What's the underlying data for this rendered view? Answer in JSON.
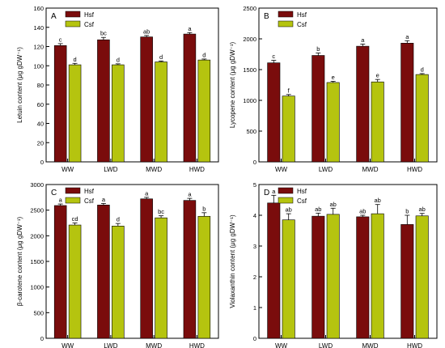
{
  "chart_data": [
    {
      "type": "bar",
      "panel_letter": "A",
      "categories": [
        "WW",
        "LWD",
        "MWD",
        "HWD"
      ],
      "series": [
        {
          "name": "Hsf",
          "color": "#7a0c0c",
          "values": [
            121,
            127,
            130,
            133
          ],
          "errors": [
            2,
            2.5,
            1.5,
            1.5
          ],
          "letters": [
            "c",
            "bc",
            "ab",
            "a"
          ]
        },
        {
          "name": "Csf",
          "color": "#b5c40f",
          "values": [
            101,
            101,
            104,
            106
          ],
          "errors": [
            1.5,
            1,
            1,
            1
          ],
          "letters": [
            "d",
            "d",
            "d",
            "d"
          ]
        }
      ],
      "ylabel": "Letuin content (μg gDW⁻¹)",
      "ylim": [
        0,
        160
      ],
      "yticks": [
        0,
        20,
        40,
        60,
        80,
        100,
        120,
        140,
        160
      ],
      "legend_position": "top-left"
    },
    {
      "type": "bar",
      "panel_letter": "B",
      "categories": [
        "WW",
        "LWD",
        "MWD",
        "HWD"
      ],
      "series": [
        {
          "name": "Hsf",
          "color": "#7a0c0c",
          "values": [
            1610,
            1730,
            1880,
            1930
          ],
          "errors": [
            40,
            40,
            35,
            40
          ],
          "letters": [
            "c",
            "b",
            "a",
            "a"
          ]
        },
        {
          "name": "Csf",
          "color": "#b5c40f",
          "values": [
            1070,
            1290,
            1300,
            1420
          ],
          "errors": [
            25,
            20,
            40,
            15
          ],
          "letters": [
            "f",
            "e",
            "e",
            "d"
          ]
        }
      ],
      "ylabel": "Lycopene content (μg gDW⁻¹)",
      "ylim": [
        0,
        2500
      ],
      "yticks": [
        0,
        500,
        1000,
        1500,
        2000,
        2500
      ],
      "legend_position": "top-left"
    },
    {
      "type": "bar",
      "panel_letter": "C",
      "categories": [
        "WW",
        "LWD",
        "MWD",
        "HWD"
      ],
      "series": [
        {
          "name": "Hsf",
          "color": "#7a0c0c",
          "values": [
            2590,
            2600,
            2720,
            2690
          ],
          "errors": [
            30,
            30,
            30,
            40
          ],
          "letters": [
            "a",
            "a",
            "a",
            "a"
          ]
        },
        {
          "name": "Csf",
          "color": "#b5c40f",
          "values": [
            2210,
            2190,
            2350,
            2380
          ],
          "errors": [
            40,
            50,
            40,
            70
          ],
          "letters": [
            "cd",
            "d",
            "bc",
            "b"
          ]
        }
      ],
      "ylabel": "β-carotene content (μg gDW⁻¹)",
      "ylim": [
        0,
        3000
      ],
      "yticks": [
        0,
        500,
        1000,
        1500,
        2000,
        2500,
        3000
      ],
      "legend_position": "top-left"
    },
    {
      "type": "bar",
      "panel_letter": "D",
      "categories": [
        "WW",
        "LWD",
        "MWD",
        "HWD"
      ],
      "series": [
        {
          "name": "Hsf",
          "color": "#7a0c0c",
          "values": [
            4.4,
            3.97,
            3.95,
            3.7
          ],
          "errors": [
            0.25,
            0.1,
            0.05,
            0.3
          ],
          "letters": [
            "a",
            "ab",
            "ab",
            "b"
          ]
        },
        {
          "name": "Csf",
          "color": "#b5c40f",
          "values": [
            3.85,
            4.03,
            4.05,
            3.98
          ],
          "errors": [
            0.2,
            0.2,
            0.3,
            0.08
          ],
          "letters": [
            "ab",
            "ab",
            "ab",
            "ab"
          ]
        }
      ],
      "ylabel": "Violaxanthin content (μg gDW⁻¹)",
      "ylim": [
        0,
        5
      ],
      "yticks": [
        0,
        1,
        2,
        3,
        4,
        5
      ],
      "legend_position": "top-left"
    }
  ]
}
